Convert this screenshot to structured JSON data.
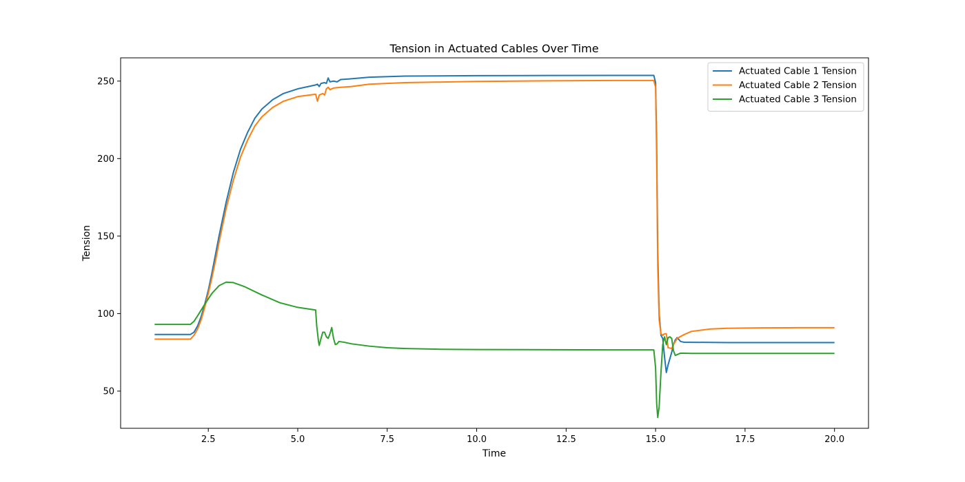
{
  "chart_data": {
    "type": "line",
    "title": "Tension in Actuated Cables Over Time",
    "xlabel": "Time",
    "ylabel": "Tension",
    "xlim": [
      0.05,
      20.95
    ],
    "ylim": [
      26,
      265
    ],
    "xticks": [
      2.5,
      5.0,
      7.5,
      10.0,
      12.5,
      15.0,
      17.5,
      20.0
    ],
    "xtick_labels": [
      "2.5",
      "5.0",
      "7.5",
      "10.0",
      "12.5",
      "15.0",
      "17.5",
      "20.0"
    ],
    "yticks": [
      50,
      100,
      150,
      200,
      250
    ],
    "ytick_labels": [
      "50",
      "100",
      "150",
      "200",
      "250"
    ],
    "grid": false,
    "legend_position": "top-right",
    "series": [
      {
        "name": "Actuated Cable 1 Tension",
        "color": "#1f77b4",
        "points": [
          [
            1.0,
            86.5
          ],
          [
            1.5,
            86.5
          ],
          [
            2.0,
            86.5
          ],
          [
            2.1,
            88
          ],
          [
            2.2,
            92
          ],
          [
            2.3,
            98
          ],
          [
            2.4,
            106
          ],
          [
            2.5,
            115
          ],
          [
            2.6,
            126
          ],
          [
            2.7,
            138
          ],
          [
            2.8,
            150
          ],
          [
            2.9,
            161
          ],
          [
            3.0,
            172
          ],
          [
            3.2,
            191
          ],
          [
            3.4,
            206
          ],
          [
            3.6,
            217
          ],
          [
            3.8,
            226
          ],
          [
            4.0,
            232
          ],
          [
            4.3,
            238
          ],
          [
            4.6,
            242
          ],
          [
            5.0,
            245
          ],
          [
            5.5,
            247.5
          ],
          [
            5.55,
            248
          ],
          [
            5.6,
            246.5
          ],
          [
            5.65,
            248.5
          ],
          [
            5.75,
            249
          ],
          [
            5.8,
            248.5
          ],
          [
            5.85,
            252
          ],
          [
            5.9,
            249.5
          ],
          [
            6.0,
            250
          ],
          [
            6.1,
            249.5
          ],
          [
            6.2,
            251
          ],
          [
            6.5,
            251.5
          ],
          [
            7.0,
            252.5
          ],
          [
            8.0,
            253.2
          ],
          [
            10.0,
            253.5
          ],
          [
            12.0,
            253.6
          ],
          [
            14.0,
            253.7
          ],
          [
            14.95,
            253.7
          ],
          [
            15.0,
            249
          ],
          [
            15.03,
            210
          ],
          [
            15.06,
            140
          ],
          [
            15.1,
            100
          ],
          [
            15.15,
            86
          ],
          [
            15.2,
            84
          ],
          [
            15.25,
            72
          ],
          [
            15.3,
            62
          ],
          [
            15.35,
            67
          ],
          [
            15.4,
            71
          ],
          [
            15.45,
            75
          ],
          [
            15.5,
            80
          ],
          [
            15.55,
            83
          ],
          [
            15.6,
            84.5
          ],
          [
            15.7,
            82
          ],
          [
            15.8,
            81.5
          ],
          [
            16.0,
            81.5
          ],
          [
            17.0,
            81.3
          ],
          [
            18.0,
            81.3
          ],
          [
            19.0,
            81.3
          ],
          [
            20.0,
            81.3
          ]
        ]
      },
      {
        "name": "Actuated Cable 2 Tension",
        "color": "#ff7f0e",
        "points": [
          [
            1.0,
            83.5
          ],
          [
            1.5,
            83.5
          ],
          [
            2.0,
            83.5
          ],
          [
            2.1,
            86
          ],
          [
            2.2,
            90
          ],
          [
            2.3,
            96
          ],
          [
            2.4,
            104
          ],
          [
            2.5,
            113
          ],
          [
            2.6,
            123
          ],
          [
            2.7,
            134
          ],
          [
            2.8,
            146
          ],
          [
            2.9,
            157
          ],
          [
            3.0,
            168
          ],
          [
            3.2,
            186
          ],
          [
            3.4,
            201
          ],
          [
            3.6,
            212
          ],
          [
            3.8,
            221
          ],
          [
            4.0,
            227
          ],
          [
            4.3,
            233
          ],
          [
            4.6,
            237
          ],
          [
            5.0,
            240
          ],
          [
            5.5,
            241.5
          ],
          [
            5.55,
            237
          ],
          [
            5.6,
            241
          ],
          [
            5.7,
            242
          ],
          [
            5.75,
            241
          ],
          [
            5.8,
            245
          ],
          [
            5.85,
            246
          ],
          [
            5.9,
            244.5
          ],
          [
            6.0,
            245.5
          ],
          [
            6.2,
            246
          ],
          [
            6.5,
            246.5
          ],
          [
            7.0,
            248
          ],
          [
            8.0,
            249
          ],
          [
            10.0,
            249.8
          ],
          [
            12.0,
            250.2
          ],
          [
            14.0,
            250.4
          ],
          [
            14.95,
            250.4
          ],
          [
            15.0,
            246
          ],
          [
            15.03,
            200
          ],
          [
            15.06,
            130
          ],
          [
            15.1,
            96
          ],
          [
            15.15,
            87
          ],
          [
            15.2,
            86
          ],
          [
            15.25,
            87
          ],
          [
            15.3,
            87
          ],
          [
            15.35,
            78
          ],
          [
            15.45,
            77.5
          ],
          [
            15.5,
            80
          ],
          [
            15.6,
            84
          ],
          [
            15.8,
            86.5
          ],
          [
            16.0,
            88.5
          ],
          [
            16.5,
            90
          ],
          [
            17.0,
            90.5
          ],
          [
            18.0,
            90.8
          ],
          [
            19.0,
            90.9
          ],
          [
            20.0,
            90.9
          ]
        ]
      },
      {
        "name": "Actuated Cable 3 Tension",
        "color": "#2ca02c",
        "points": [
          [
            1.0,
            93
          ],
          [
            1.5,
            93
          ],
          [
            2.0,
            93
          ],
          [
            2.1,
            95
          ],
          [
            2.2,
            98.5
          ],
          [
            2.4,
            106
          ],
          [
            2.6,
            113
          ],
          [
            2.8,
            118
          ],
          [
            3.0,
            120.3
          ],
          [
            3.2,
            120
          ],
          [
            3.5,
            117.5
          ],
          [
            4.0,
            112
          ],
          [
            4.5,
            107
          ],
          [
            5.0,
            104
          ],
          [
            5.5,
            102.3
          ],
          [
            5.53,
            92
          ],
          [
            5.58,
            82
          ],
          [
            5.6,
            79.5
          ],
          [
            5.65,
            84
          ],
          [
            5.7,
            88
          ],
          [
            5.75,
            88
          ],
          [
            5.8,
            85
          ],
          [
            5.85,
            84
          ],
          [
            5.9,
            87
          ],
          [
            5.95,
            91
          ],
          [
            6.0,
            84
          ],
          [
            6.05,
            80
          ],
          [
            6.1,
            80.5
          ],
          [
            6.15,
            82
          ],
          [
            6.3,
            81.5
          ],
          [
            6.5,
            80.5
          ],
          [
            7.0,
            79
          ],
          [
            7.5,
            78
          ],
          [
            8.0,
            77.5
          ],
          [
            9.0,
            77
          ],
          [
            10.0,
            76.8
          ],
          [
            12.0,
            76.7
          ],
          [
            14.0,
            76.6
          ],
          [
            14.95,
            76.6
          ],
          [
            15.0,
            65
          ],
          [
            15.03,
            42
          ],
          [
            15.06,
            33
          ],
          [
            15.1,
            40
          ],
          [
            15.15,
            62
          ],
          [
            15.2,
            80
          ],
          [
            15.25,
            85
          ],
          [
            15.3,
            80
          ],
          [
            15.35,
            84.5
          ],
          [
            15.4,
            85
          ],
          [
            15.45,
            84
          ],
          [
            15.5,
            76
          ],
          [
            15.55,
            73
          ],
          [
            15.6,
            73.5
          ],
          [
            15.7,
            74.5
          ],
          [
            16.0,
            74.3
          ],
          [
            17.0,
            74.3
          ],
          [
            18.0,
            74.3
          ],
          [
            19.0,
            74.3
          ],
          [
            20.0,
            74.3
          ]
        ]
      }
    ]
  }
}
